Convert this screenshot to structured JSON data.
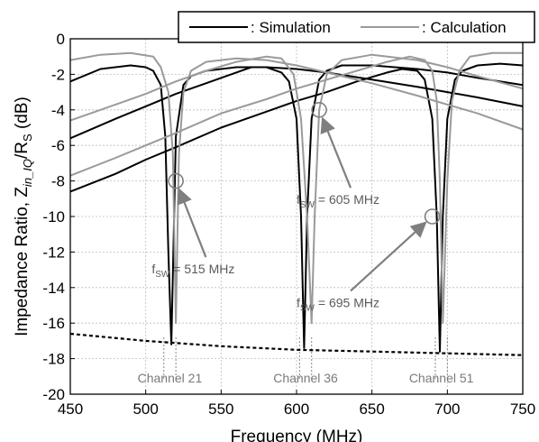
{
  "chart_data": {
    "type": "line",
    "xlabel": "Frequency (MHz)",
    "ylabel_prefix": "Impedance Ratio, Z",
    "ylabel_sub": "in_IQ",
    "ylabel_mid": "/R",
    "ylabel_sub2": "S",
    "ylabel_suffix": " (dB)",
    "xlim": [
      450,
      750
    ],
    "ylim": [
      -20,
      0
    ],
    "x_ticks": [
      450,
      500,
      550,
      600,
      650,
      700,
      750
    ],
    "y_ticks": [
      0,
      -2,
      -4,
      -6,
      -8,
      -10,
      -12,
      -14,
      -16,
      -18,
      -20
    ],
    "grid": true,
    "legend_position": "top-right",
    "legend": [
      {
        "label": ": Simulation",
        "color": "#000000"
      },
      {
        "label": ": Calculation",
        "color": "#9a9a9a"
      }
    ],
    "series": [
      {
        "name": "Simulation",
        "color": "#000000",
        "curves": [
          {
            "x": [
              450,
              470,
              490,
              500,
              505,
              510,
              513,
              515,
              517,
              520,
              525,
              530,
              540,
              560,
              580,
              600,
              620,
              650,
              680,
              700,
              720,
              750
            ],
            "y": [
              -2.4,
              -1.7,
              -1.5,
              -1.6,
              -1.8,
              -2.6,
              -5.5,
              -12,
              -17.2,
              -5.5,
              -2.6,
              -2.1,
              -1.8,
              -1.6,
              -1.6,
              -1.7,
              -1.9,
              -2.3,
              -2.7,
              -3.0,
              -3.3,
              -3.8
            ]
          },
          {
            "x": [
              450,
              480,
              500,
              520,
              540,
              560,
              570,
              580,
              590,
              595,
              600,
              603,
              605,
              607,
              610,
              615,
              620,
              630,
              650,
              680,
              700,
              720,
              750
            ],
            "y": [
              -5.6,
              -4.5,
              -3.8,
              -3.1,
              -2.5,
              -1.9,
              -1.6,
              -1.6,
              -1.9,
              -2.4,
              -4.5,
              -10,
              -17.4,
              -10,
              -4.5,
              -2.3,
              -1.8,
              -1.5,
              -1.5,
              -1.7,
              -1.9,
              -2.2,
              -2.6
            ]
          },
          {
            "x": [
              450,
              480,
              500,
              520,
              550,
              580,
              600,
              620,
              640,
              660,
              670,
              680,
              685,
              690,
              693,
              695,
              697,
              700,
              705,
              710,
              720,
              735,
              750
            ],
            "y": [
              -8.6,
              -7.6,
              -6.8,
              -6.1,
              -5.0,
              -4.1,
              -3.5,
              -3.0,
              -2.4,
              -1.9,
              -1.7,
              -1.8,
              -2.3,
              -4.5,
              -10,
              -17.6,
              -10,
              -4.5,
              -2.3,
              -1.8,
              -1.5,
              -1.4,
              -1.5
            ]
          }
        ]
      },
      {
        "name": "Calculation",
        "color": "#9a9a9a",
        "curves": [
          {
            "x": [
              450,
              470,
              490,
              505,
              510,
              515,
              518,
              520,
              522,
              525,
              530,
              540,
              560,
              580,
              600,
              620,
              650,
              680,
              700,
              720,
              750
            ],
            "y": [
              -1.2,
              -0.9,
              -0.8,
              -1.0,
              -1.6,
              -3.0,
              -6.5,
              -16,
              -6.5,
              -3.0,
              -1.8,
              -1.3,
              -1.1,
              -1.2,
              -1.5,
              -1.9,
              -2.5,
              -3.2,
              -3.7,
              -4.2,
              -5.1
            ]
          },
          {
            "x": [
              450,
              480,
              500,
              520,
              540,
              560,
              580,
              590,
              598,
              603,
              607,
              610,
              612,
              615,
              620,
              630,
              650,
              680,
              700,
              720,
              750
            ],
            "y": [
              -4.6,
              -3.7,
              -3.1,
              -2.4,
              -1.8,
              -1.3,
              -1.0,
              -1.1,
              -2.0,
              -4.5,
              -10,
              -16,
              -10,
              -4.0,
              -2.0,
              -1.2,
              -0.9,
              -1.2,
              -1.6,
              -2.1,
              -2.8
            ]
          },
          {
            "x": [
              450,
              480,
              500,
              520,
              550,
              580,
              600,
              620,
              640,
              660,
              675,
              685,
              690,
              693,
              695,
              697,
              700,
              703,
              708,
              715,
              730,
              750
            ],
            "y": [
              -7.7,
              -6.7,
              -6.0,
              -5.3,
              -4.2,
              -3.4,
              -2.8,
              -2.3,
              -1.8,
              -1.3,
              -1.0,
              -1.2,
              -1.8,
              -3.5,
              -8,
              -16,
              -8,
              -3.5,
              -1.8,
              -1.0,
              -0.8,
              -0.8
            ]
          }
        ]
      },
      {
        "name": "Envelope",
        "color": "#000000",
        "dashed": true,
        "curves": [
          {
            "x": [
              450,
              500,
              550,
              600,
              650,
              700,
              750
            ],
            "y": [
              -16.6,
              -17.0,
              -17.3,
              -17.5,
              -17.6,
              -17.7,
              -17.8
            ]
          }
        ]
      }
    ],
    "annotations": [
      {
        "sym": "f",
        "sub": "SW",
        "rest": " = 515 MHz",
        "x": 520,
        "y": -8,
        "tx": 504,
        "ty": -13.2
      },
      {
        "sym": "f",
        "sub": "SW",
        "rest": " = 605 MHz",
        "x": 615,
        "y": -4,
        "tx": 600,
        "ty": -9.3
      },
      {
        "sym": "f",
        "sub": "SW",
        "rest": " = 695 MHz",
        "x": 690,
        "y": -10,
        "tx": 600,
        "ty": -15.1
      }
    ],
    "channels": [
      {
        "label": "Channel 21",
        "x1": 512,
        "x2": 520
      },
      {
        "label": "Channel 36",
        "x1": 602,
        "x2": 610
      },
      {
        "label": "Channel 51",
        "x1": 692,
        "x2": 700
      }
    ]
  }
}
